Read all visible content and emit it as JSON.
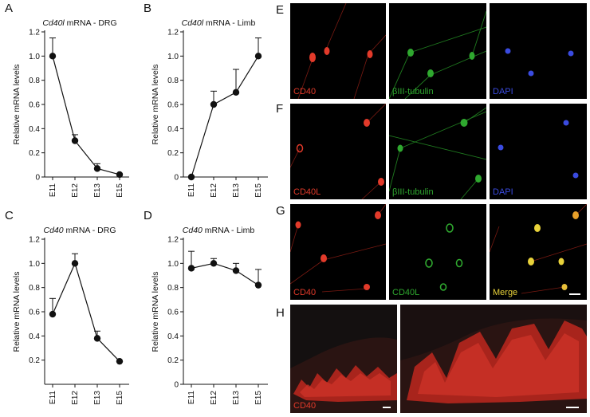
{
  "panel_letters": {
    "A": "A",
    "B": "B",
    "C": "C",
    "D": "D",
    "E": "E",
    "F": "F",
    "G": "G",
    "H": "H"
  },
  "chart_data": [
    {
      "id": "A",
      "type": "line",
      "title_italic": "Cd40l",
      "title_rest": " mRNA  - DRG",
      "ylabel": "Relative mRNA levels",
      "categories": [
        "E11",
        "E12",
        "E13",
        "E15"
      ],
      "values": [
        1.0,
        0.3,
        0.07,
        0.02
      ],
      "errors": [
        0.15,
        0.05,
        0.04,
        0.0
      ],
      "ylim": [
        0,
        1.2
      ],
      "yticks": [
        "0",
        "0.2",
        "0.4",
        "0.6",
        "0.8",
        "1.0",
        "1.2"
      ],
      "ytick_values": [
        0,
        0.2,
        0.4,
        0.6,
        0.8,
        1.0,
        1.2
      ]
    },
    {
      "id": "B",
      "type": "line",
      "title_italic": "Cd40l",
      "title_rest": " mRNA  - Limb",
      "ylabel": "Relative mRNA levels",
      "categories": [
        "E11",
        "E12",
        "E13",
        "E15"
      ],
      "values": [
        0.0,
        0.6,
        0.7,
        1.0
      ],
      "errors": [
        0.0,
        0.11,
        0.19,
        0.15
      ],
      "ylim": [
        0,
        1.2
      ],
      "yticks": [
        "0",
        "0.2",
        "0.4",
        "0.6",
        "0.8",
        "1.0",
        "1.2"
      ],
      "ytick_values": [
        0,
        0.2,
        0.4,
        0.6,
        0.8,
        1.0,
        1.2
      ]
    },
    {
      "id": "C",
      "type": "line",
      "title_italic": "Cd40",
      "title_rest": " mRNA  - DRG",
      "ylabel": "Relative mRNA levels",
      "categories": [
        "E11",
        "E12",
        "E13",
        "E15"
      ],
      "values": [
        0.58,
        1.0,
        0.38,
        0.19
      ],
      "errors": [
        0.13,
        0.08,
        0.06,
        0.0
      ],
      "ylim": [
        0,
        1.2
      ],
      "yticks": [
        "0.2",
        "0.4",
        "0.6",
        "0.8",
        "1.0",
        "1.2"
      ],
      "ytick_values": [
        0.2,
        0.4,
        0.6,
        0.8,
        1.0,
        1.2
      ]
    },
    {
      "id": "D",
      "type": "line",
      "title_italic": "Cd40",
      "title_rest": " mRNA  - Limb",
      "ylabel": "Relative mRNA levels",
      "categories": [
        "E11",
        "E12",
        "E13",
        "E15"
      ],
      "values": [
        0.96,
        1.0,
        0.94,
        0.82
      ],
      "errors": [
        0.14,
        0.04,
        0.06,
        0.13
      ],
      "ylim": [
        0,
        1.2
      ],
      "yticks": [
        "0",
        "0.2",
        "0.4",
        "0.6",
        "0.8",
        "1.0",
        "1.2"
      ],
      "ytick_values": [
        0,
        0.2,
        0.4,
        0.6,
        0.8,
        1.0,
        1.2
      ]
    }
  ],
  "micrographs": {
    "E1": {
      "label": "CD40",
      "color": "#e23a2a"
    },
    "E2": {
      "label": "βIII-tubulin",
      "color": "#2fa82f"
    },
    "E3": {
      "label": "DAPI",
      "color": "#3a4be0"
    },
    "F1": {
      "label": "CD40L",
      "color": "#e23a2a"
    },
    "F2": {
      "label": "βIII-tubulin",
      "color": "#2fa82f"
    },
    "F3": {
      "label": "DAPI",
      "color": "#3a4be0"
    },
    "G1": {
      "label": "CD40",
      "color": "#e23a2a"
    },
    "G2": {
      "label": "CD40L",
      "color": "#2fa82f"
    },
    "G3": {
      "label": "Merge",
      "color": "#e8d23a"
    },
    "H1": {
      "label": "CD40",
      "color": "#e23a2a"
    }
  }
}
